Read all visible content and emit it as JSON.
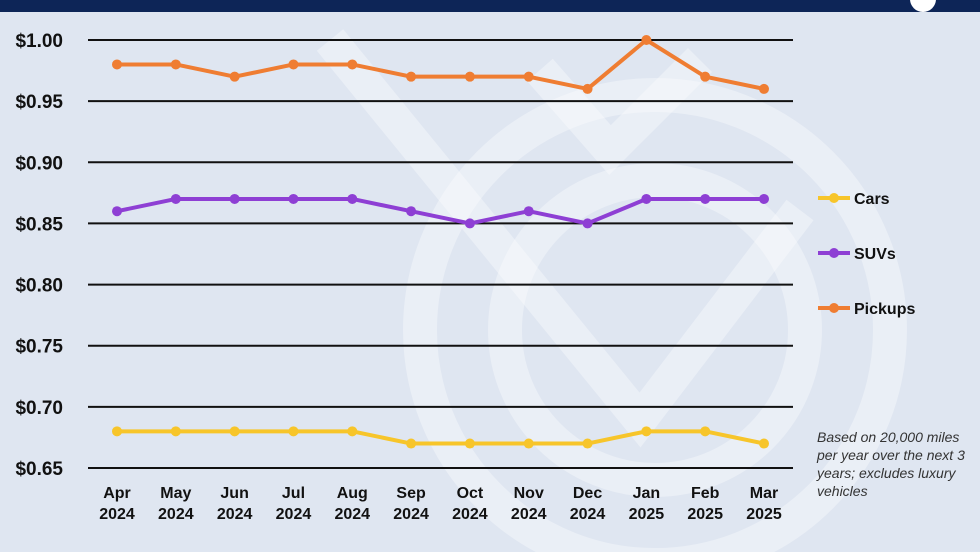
{
  "chart_data": {
    "type": "line",
    "categories": [
      [
        "Apr",
        "2024"
      ],
      [
        "May",
        "2024"
      ],
      [
        "Jun",
        "2024"
      ],
      [
        "Jul",
        "2024"
      ],
      [
        "Aug",
        "2024"
      ],
      [
        "Sep",
        "2024"
      ],
      [
        "Oct",
        "2024"
      ],
      [
        "Nov",
        "2024"
      ],
      [
        "Dec",
        "2024"
      ],
      [
        "Jan",
        "2025"
      ],
      [
        "Feb",
        "2025"
      ],
      [
        "Mar",
        "2025"
      ]
    ],
    "series": [
      {
        "name": "Cars",
        "color": "#f7c52a",
        "values": [
          0.68,
          0.68,
          0.68,
          0.68,
          0.68,
          0.67,
          0.67,
          0.67,
          0.67,
          0.68,
          0.68,
          0.67
        ]
      },
      {
        "name": "SUVs",
        "color": "#8e3fd4",
        "values": [
          0.86,
          0.87,
          0.87,
          0.87,
          0.87,
          0.86,
          0.85,
          0.86,
          0.85,
          0.87,
          0.87,
          0.87
        ]
      },
      {
        "name": "Pickups",
        "color": "#ef7d32",
        "values": [
          0.98,
          0.98,
          0.97,
          0.98,
          0.98,
          0.97,
          0.97,
          0.97,
          0.96,
          1.0,
          0.97,
          0.96
        ]
      }
    ],
    "yticks": [
      "$1.00",
      "$0.95",
      "$0.90",
      "$0.85",
      "$0.80",
      "$0.75",
      "$0.70",
      "$0.65"
    ],
    "ytick_values": [
      1.0,
      0.95,
      0.9,
      0.85,
      0.8,
      0.75,
      0.7,
      0.65
    ],
    "ylim": [
      0.65,
      1.0
    ],
    "grid": "horizontal",
    "legend_position": "right",
    "title": "",
    "xlabel": "",
    "ylabel": ""
  },
  "note": "Based on 20,000 miles per year over the next 3 years; excludes luxury vehicles",
  "colors": {
    "background": "#dfe6f1",
    "header_bar": "#0d2557",
    "gridline": "#111111"
  }
}
